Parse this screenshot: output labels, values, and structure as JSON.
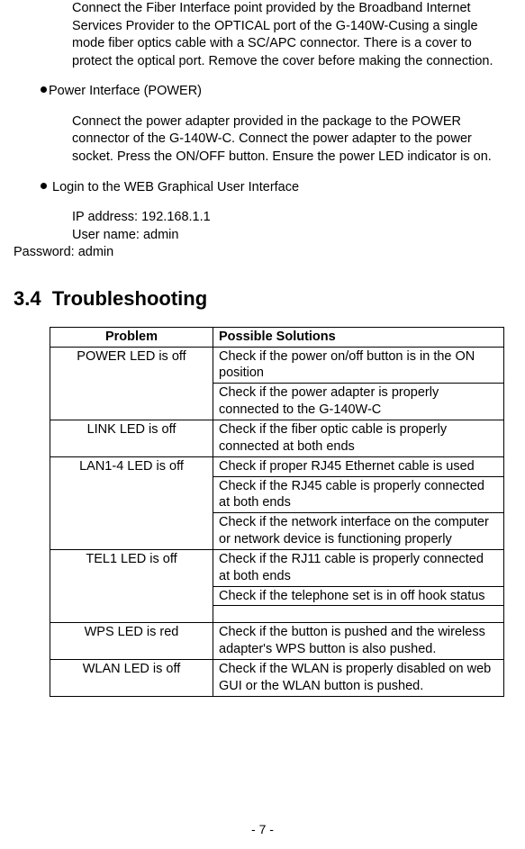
{
  "intro": {
    "fiber_paragraph": "Connect the Fiber Interface point provided by the Broadband Internet Services Provider to the OPTICAL port of the G-140W-Cusing a single mode fiber optics cable with a SC/APC connector. There is a cover to protect the optical port. Remove the cover before making the connection."
  },
  "power": {
    "heading": "Power Interface (POWER)",
    "paragraph": "Connect the power adapter provided in the package to the POWER connector of the G-140W-C. Connect the power adapter to the power socket. Press the ON/OFF button. Ensure the power LED indicator is on."
  },
  "login": {
    "heading": " Login to the WEB Graphical User Interface",
    "ip_line": "IP address: 192.168.1.1",
    "user_line": "User name:  admin",
    "pw_line": "Password: admin"
  },
  "section": {
    "number": "3.4",
    "title": "Troubleshooting"
  },
  "table": {
    "head_problem": "Problem",
    "head_solutions": "Possible Solutions",
    "rows": [
      {
        "problem": "POWER LED is off",
        "solutions": [
          "Check if the power on/off button is in the ON position",
          "Check if the power adapter is properly connected to the G-140W-C"
        ]
      },
      {
        "problem": "LINK LED is off",
        "solutions": [
          "Check if the fiber optic cable is properly connected at both ends"
        ]
      },
      {
        "problem": "LAN1-4 LED is off",
        "solutions": [
          "Check if proper RJ45 Ethernet cable is used",
          "Check if the RJ45 cable is properly connected at both ends",
          "Check if the network interface on the computer or network device is functioning properly"
        ]
      },
      {
        "problem": "TEL1 LED is off",
        "solutions": [
          "Check if the RJ11 cable is properly connected at both ends",
          "Check if the telephone set is in off hook status",
          ""
        ]
      },
      {
        "problem": "WPS LED is red",
        "solutions": [
          "Check if the button is pushed and the wireless adapter's WPS button is also pushed."
        ]
      },
      {
        "problem": "WLAN LED is off",
        "solutions": [
          "Check if the WLAN is properly disabled on web GUI or the WLAN button is pushed."
        ]
      }
    ]
  },
  "page_number": "- 7 -"
}
